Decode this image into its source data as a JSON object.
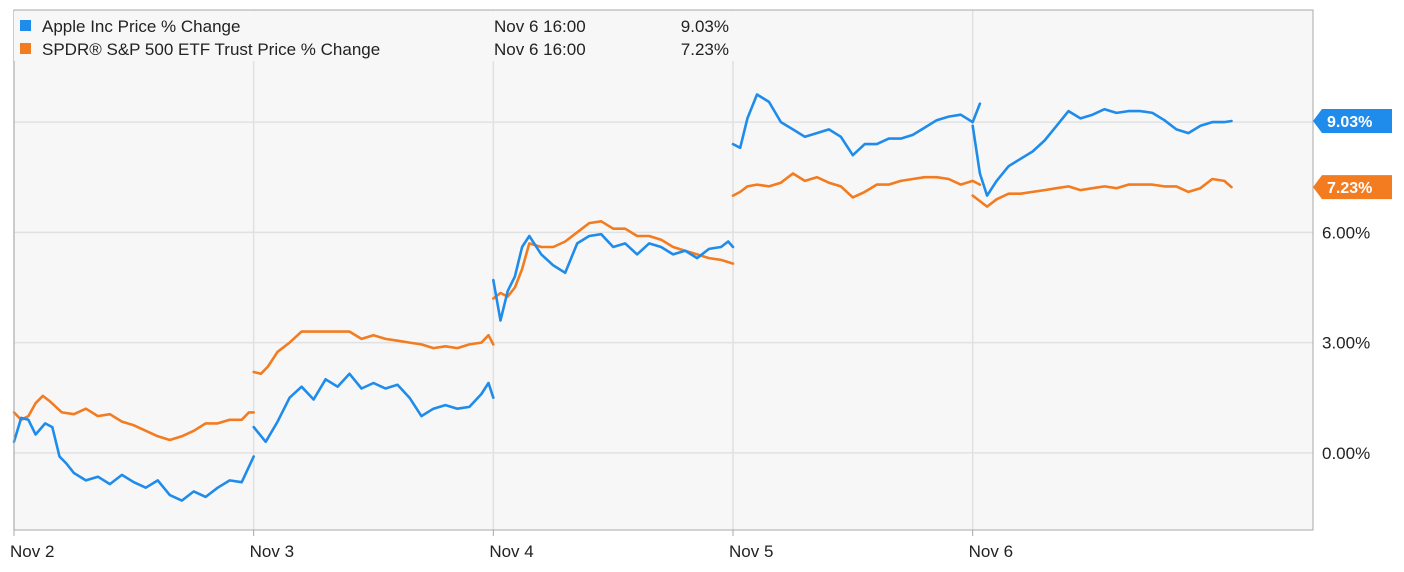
{
  "chart_data": {
    "type": "line",
    "ylim": [
      -2.1,
      12.05
    ],
    "xlim": [
      0,
      5.42
    ],
    "grid": true,
    "legend_position": "top-left",
    "yticks": [
      {
        "value": 0,
        "label": "0.00%"
      },
      {
        "value": 3,
        "label": "3.00%"
      },
      {
        "value": 6,
        "label": "6.00%"
      },
      {
        "value": 9,
        "label": "9.00%"
      }
    ],
    "xticks": [
      {
        "value": 0,
        "label": "Nov 2"
      },
      {
        "value": 1,
        "label": "Nov 3"
      },
      {
        "value": 2,
        "label": "Nov 4"
      },
      {
        "value": 3,
        "label": "Nov 5"
      },
      {
        "value": 4,
        "label": "Nov 6"
      }
    ],
    "series": [
      {
        "name": "Apple Inc Price % Change",
        "color": "#1f8ceb",
        "legend_date": "Nov 6 16:00",
        "legend_value": "9.03%",
        "badge": "9.03%",
        "last_value": 9.03,
        "points": [
          [
            0.0,
            0.3
          ],
          [
            0.03,
            0.95
          ],
          [
            0.06,
            0.9
          ],
          [
            0.09,
            0.5
          ],
          [
            0.13,
            0.8
          ],
          [
            0.16,
            0.7
          ],
          [
            0.19,
            -0.1
          ],
          [
            0.22,
            -0.3
          ],
          [
            0.25,
            -0.55
          ],
          [
            0.3,
            -0.75
          ],
          [
            0.35,
            -0.65
          ],
          [
            0.4,
            -0.85
          ],
          [
            0.45,
            -0.6
          ],
          [
            0.5,
            -0.8
          ],
          [
            0.55,
            -0.95
          ],
          [
            0.6,
            -0.75
          ],
          [
            0.65,
            -1.15
          ],
          [
            0.7,
            -1.3
          ],
          [
            0.75,
            -1.05
          ],
          [
            0.8,
            -1.2
          ],
          [
            0.85,
            -0.95
          ],
          [
            0.9,
            -0.75
          ],
          [
            0.95,
            -0.8
          ],
          [
            1.0,
            -0.1
          ],
          [
            1.0,
            0.7
          ],
          [
            1.05,
            0.3
          ],
          [
            1.1,
            0.85
          ],
          [
            1.15,
            1.5
          ],
          [
            1.2,
            1.8
          ],
          [
            1.25,
            1.45
          ],
          [
            1.3,
            2.0
          ],
          [
            1.35,
            1.8
          ],
          [
            1.4,
            2.15
          ],
          [
            1.45,
            1.75
          ],
          [
            1.5,
            1.9
          ],
          [
            1.55,
            1.75
          ],
          [
            1.6,
            1.85
          ],
          [
            1.65,
            1.5
          ],
          [
            1.7,
            1.0
          ],
          [
            1.75,
            1.2
          ],
          [
            1.8,
            1.3
          ],
          [
            1.85,
            1.2
          ],
          [
            1.9,
            1.25
          ],
          [
            1.95,
            1.6
          ],
          [
            1.98,
            1.9
          ],
          [
            2.0,
            1.5
          ],
          [
            2.0,
            4.7
          ],
          [
            2.03,
            3.6
          ],
          [
            2.06,
            4.4
          ],
          [
            2.09,
            4.8
          ],
          [
            2.12,
            5.6
          ],
          [
            2.15,
            5.9
          ],
          [
            2.2,
            5.4
          ],
          [
            2.25,
            5.1
          ],
          [
            2.3,
            4.9
          ],
          [
            2.35,
            5.7
          ],
          [
            2.4,
            5.9
          ],
          [
            2.45,
            5.95
          ],
          [
            2.5,
            5.6
          ],
          [
            2.55,
            5.7
          ],
          [
            2.6,
            5.4
          ],
          [
            2.65,
            5.7
          ],
          [
            2.7,
            5.6
          ],
          [
            2.75,
            5.4
          ],
          [
            2.8,
            5.5
          ],
          [
            2.85,
            5.3
          ],
          [
            2.9,
            5.55
          ],
          [
            2.95,
            5.6
          ],
          [
            2.98,
            5.75
          ],
          [
            3.0,
            5.6
          ],
          [
            3.0,
            8.4
          ],
          [
            3.03,
            8.3
          ],
          [
            3.06,
            9.1
          ],
          [
            3.1,
            9.75
          ],
          [
            3.15,
            9.55
          ],
          [
            3.2,
            9.0
          ],
          [
            3.25,
            8.8
          ],
          [
            3.3,
            8.6
          ],
          [
            3.35,
            8.7
          ],
          [
            3.4,
            8.8
          ],
          [
            3.45,
            8.6
          ],
          [
            3.5,
            8.1
          ],
          [
            3.55,
            8.4
          ],
          [
            3.6,
            8.4
          ],
          [
            3.65,
            8.55
          ],
          [
            3.7,
            8.55
          ],
          [
            3.75,
            8.65
          ],
          [
            3.8,
            8.85
          ],
          [
            3.85,
            9.05
          ],
          [
            3.9,
            9.15
          ],
          [
            3.95,
            9.2
          ],
          [
            4.0,
            9.0
          ],
          [
            4.03,
            9.5
          ],
          [
            4.0,
            8.9
          ],
          [
            4.03,
            7.6
          ],
          [
            4.06,
            7.0
          ],
          [
            4.1,
            7.4
          ],
          [
            4.15,
            7.8
          ],
          [
            4.2,
            8.0
          ],
          [
            4.25,
            8.2
          ],
          [
            4.3,
            8.5
          ],
          [
            4.35,
            8.9
          ],
          [
            4.4,
            9.3
          ],
          [
            4.45,
            9.1
          ],
          [
            4.5,
            9.2
          ],
          [
            4.55,
            9.35
          ],
          [
            4.6,
            9.25
          ],
          [
            4.65,
            9.3
          ],
          [
            4.7,
            9.3
          ],
          [
            4.75,
            9.25
          ],
          [
            4.8,
            9.05
          ],
          [
            4.85,
            8.8
          ],
          [
            4.9,
            8.7
          ],
          [
            4.95,
            8.9
          ],
          [
            5.0,
            9.0
          ],
          [
            5.05,
            9.0
          ],
          [
            5.08,
            9.03
          ]
        ]
      },
      {
        "name": "SPDR® S&P 500 ETF Trust Price % Change",
        "color": "#f37b20",
        "legend_date": "Nov 6 16:00",
        "legend_value": "7.23%",
        "badge": "7.23%",
        "last_value": 7.23,
        "points": [
          [
            0.0,
            1.1
          ],
          [
            0.03,
            0.9
          ],
          [
            0.06,
            1.0
          ],
          [
            0.09,
            1.35
          ],
          [
            0.12,
            1.55
          ],
          [
            0.15,
            1.4
          ],
          [
            0.2,
            1.1
          ],
          [
            0.25,
            1.05
          ],
          [
            0.3,
            1.2
          ],
          [
            0.35,
            1.0
          ],
          [
            0.4,
            1.05
          ],
          [
            0.45,
            0.85
          ],
          [
            0.5,
            0.75
          ],
          [
            0.55,
            0.6
          ],
          [
            0.6,
            0.45
          ],
          [
            0.65,
            0.35
          ],
          [
            0.7,
            0.45
          ],
          [
            0.75,
            0.6
          ],
          [
            0.8,
            0.8
          ],
          [
            0.85,
            0.8
          ],
          [
            0.9,
            0.9
          ],
          [
            0.95,
            0.9
          ],
          [
            0.98,
            1.1
          ],
          [
            1.0,
            1.1
          ],
          [
            1.0,
            2.2
          ],
          [
            1.03,
            2.15
          ],
          [
            1.06,
            2.35
          ],
          [
            1.1,
            2.75
          ],
          [
            1.15,
            3.0
          ],
          [
            1.2,
            3.3
          ],
          [
            1.25,
            3.3
          ],
          [
            1.3,
            3.3
          ],
          [
            1.35,
            3.3
          ],
          [
            1.4,
            3.3
          ],
          [
            1.45,
            3.1
          ],
          [
            1.5,
            3.2
          ],
          [
            1.55,
            3.1
          ],
          [
            1.6,
            3.05
          ],
          [
            1.65,
            3.0
          ],
          [
            1.7,
            2.95
          ],
          [
            1.75,
            2.85
          ],
          [
            1.8,
            2.9
          ],
          [
            1.85,
            2.85
          ],
          [
            1.9,
            2.95
          ],
          [
            1.95,
            3.0
          ],
          [
            1.98,
            3.2
          ],
          [
            2.0,
            2.95
          ],
          [
            2.0,
            4.2
          ],
          [
            2.03,
            4.35
          ],
          [
            2.06,
            4.25
          ],
          [
            2.09,
            4.5
          ],
          [
            2.12,
            5.0
          ],
          [
            2.15,
            5.7
          ],
          [
            2.2,
            5.6
          ],
          [
            2.25,
            5.6
          ],
          [
            2.3,
            5.75
          ],
          [
            2.35,
            6.0
          ],
          [
            2.4,
            6.25
          ],
          [
            2.45,
            6.3
          ],
          [
            2.5,
            6.1
          ],
          [
            2.55,
            6.1
          ],
          [
            2.6,
            5.9
          ],
          [
            2.65,
            5.9
          ],
          [
            2.7,
            5.8
          ],
          [
            2.75,
            5.6
          ],
          [
            2.8,
            5.5
          ],
          [
            2.85,
            5.4
          ],
          [
            2.9,
            5.3
          ],
          [
            2.95,
            5.25
          ],
          [
            3.0,
            5.15
          ],
          [
            3.0,
            7.0
          ],
          [
            3.03,
            7.1
          ],
          [
            3.06,
            7.25
          ],
          [
            3.1,
            7.3
          ],
          [
            3.15,
            7.25
          ],
          [
            3.2,
            7.35
          ],
          [
            3.25,
            7.6
          ],
          [
            3.3,
            7.4
          ],
          [
            3.35,
            7.5
          ],
          [
            3.4,
            7.35
          ],
          [
            3.45,
            7.25
          ],
          [
            3.5,
            6.95
          ],
          [
            3.55,
            7.1
          ],
          [
            3.6,
            7.3
          ],
          [
            3.65,
            7.3
          ],
          [
            3.7,
            7.4
          ],
          [
            3.75,
            7.45
          ],
          [
            3.8,
            7.5
          ],
          [
            3.85,
            7.5
          ],
          [
            3.9,
            7.45
          ],
          [
            3.95,
            7.3
          ],
          [
            4.0,
            7.4
          ],
          [
            4.03,
            7.3
          ],
          [
            4.0,
            7.0
          ],
          [
            4.03,
            6.85
          ],
          [
            4.06,
            6.7
          ],
          [
            4.1,
            6.9
          ],
          [
            4.15,
            7.05
          ],
          [
            4.2,
            7.05
          ],
          [
            4.25,
            7.1
          ],
          [
            4.3,
            7.15
          ],
          [
            4.35,
            7.2
          ],
          [
            4.4,
            7.25
          ],
          [
            4.45,
            7.15
          ],
          [
            4.5,
            7.2
          ],
          [
            4.55,
            7.25
          ],
          [
            4.6,
            7.2
          ],
          [
            4.65,
            7.3
          ],
          [
            4.7,
            7.3
          ],
          [
            4.75,
            7.3
          ],
          [
            4.8,
            7.25
          ],
          [
            4.85,
            7.25
          ],
          [
            4.9,
            7.1
          ],
          [
            4.95,
            7.2
          ],
          [
            5.0,
            7.45
          ],
          [
            5.05,
            7.4
          ],
          [
            5.08,
            7.23
          ]
        ]
      }
    ]
  }
}
